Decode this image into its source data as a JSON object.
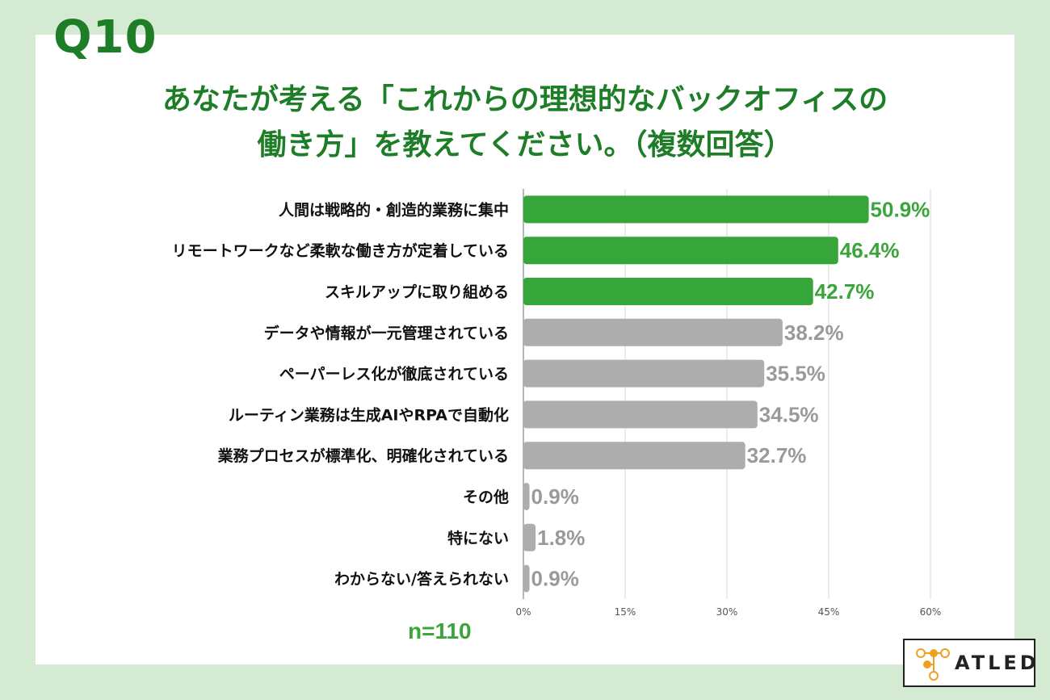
{
  "question_label": "Q10",
  "title_line1": "あなたが考える「これからの理想的なバックオフィスの",
  "title_line2": "働き方」を教えてください。（複数回答）",
  "sample_size": "n=110",
  "logo_text": "ATLED",
  "colors": {
    "background": "#d5ead3",
    "title": "#1e7d27",
    "highlight_bar": "#36a53a",
    "highlight_label": "#3aa53a",
    "other_bar": "#adadad",
    "other_label": "#9a9a9a",
    "grid": "#d8d8d8"
  },
  "chart_data": {
    "type": "bar",
    "orientation": "horizontal",
    "categories": [
      "人間は戦略的・創造的業務に集中",
      "リモートワークなど柔軟な働き方が定着している",
      "スキルアップに取り組める",
      "データや情報が一元管理されている",
      "ペーパーレス化が徹底されている",
      "ルーティン業務は生成AIやRPAで自動化",
      "業務プロセスが標準化、明確化されている",
      "その他",
      "特にない",
      "わからない/答えられない"
    ],
    "values": [
      50.9,
      46.4,
      42.7,
      38.2,
      35.5,
      34.5,
      32.7,
      0.9,
      1.8,
      0.9
    ],
    "value_labels": [
      "50.9%",
      "46.4%",
      "42.7%",
      "38.2%",
      "35.5%",
      "34.5%",
      "32.7%",
      "0.9%",
      "1.8%",
      "0.9%"
    ],
    "highlighted": [
      true,
      true,
      true,
      false,
      false,
      false,
      false,
      false,
      false,
      false
    ],
    "x_ticks": [
      "0%",
      "15%",
      "30%",
      "45%",
      "60%"
    ],
    "x_tick_values": [
      0,
      15,
      30,
      45,
      60
    ],
    "xlim": [
      0,
      60
    ],
    "grid": true,
    "title": "",
    "xlabel": "",
    "ylabel": ""
  }
}
